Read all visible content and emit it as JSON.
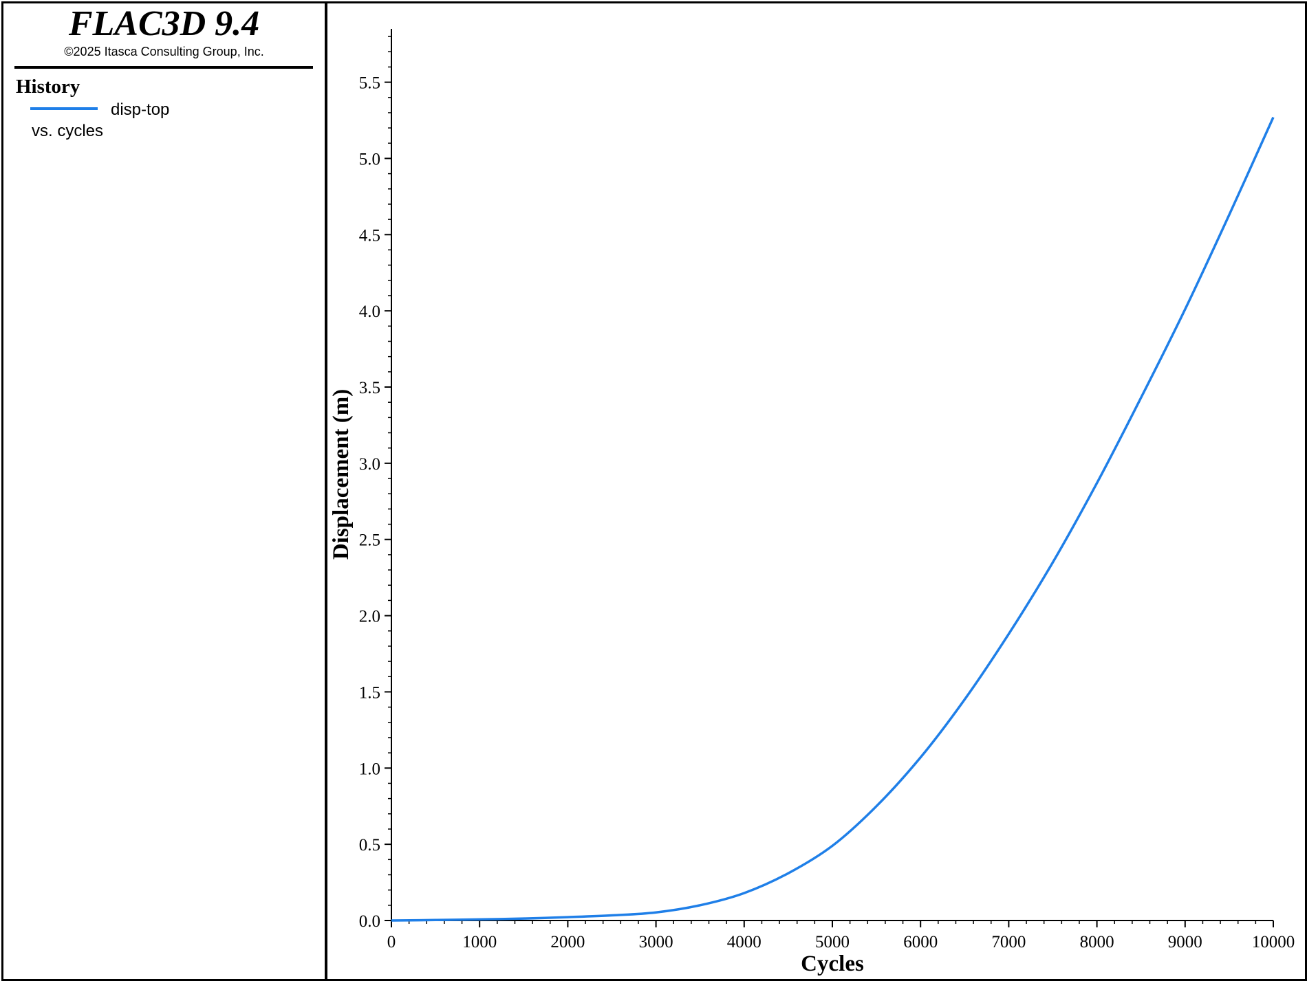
{
  "app": {
    "title": "FLAC3D 9.4",
    "copyright": "©2025 Itasca Consulting Group, Inc."
  },
  "legend": {
    "heading": "History",
    "series_label": "disp-top",
    "vs_label": "vs. cycles"
  },
  "colors": {
    "series": "#1f7fe8",
    "axis": "#000000",
    "background": "#ffffff"
  },
  "chart_data": {
    "type": "line",
    "xlabel": "Cycles",
    "ylabel": "Displacement (m)",
    "xlim": [
      0,
      10000
    ],
    "ylim": [
      0,
      5.85
    ],
    "x_major_ticks": [
      0,
      1000,
      2000,
      3000,
      4000,
      5000,
      6000,
      7000,
      8000,
      9000,
      10000
    ],
    "y_major_ticks": [
      0,
      0.5,
      1.0,
      1.5,
      2.0,
      2.5,
      3.0,
      3.5,
      4.0,
      4.5,
      5.0,
      5.5
    ],
    "y_tick_labels": [
      "0.0",
      "0.5",
      "1.0",
      "1.5",
      "2.0",
      "2.5",
      "3.0",
      "3.5",
      "4.0",
      "4.5",
      "5.0",
      "5.5"
    ],
    "x_tick_labels": [
      "0",
      "1000",
      "2000",
      "3000",
      "4000",
      "5000",
      "6000",
      "7000",
      "8000",
      "9000",
      "10000"
    ],
    "grid": false,
    "legend_placement": "left-panel",
    "series": [
      {
        "name": "disp-top",
        "x": [
          0,
          500,
          1000,
          1500,
          2000,
          2500,
          3000,
          3500,
          4000,
          4500,
          5000,
          5500,
          6000,
          6500,
          7000,
          7500,
          8000,
          8500,
          9000,
          9500,
          10000
        ],
        "y": [
          0,
          0.003,
          0.007,
          0.013,
          0.022,
          0.034,
          0.053,
          0.1,
          0.18,
          0.31,
          0.49,
          0.75,
          1.07,
          1.45,
          1.88,
          2.35,
          2.87,
          3.43,
          4.01,
          4.63,
          5.27
        ]
      }
    ]
  }
}
